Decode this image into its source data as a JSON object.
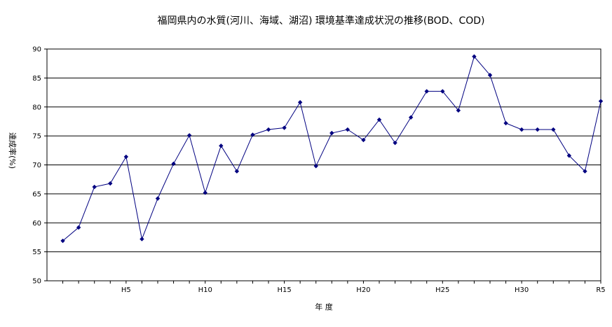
{
  "chart_data": {
    "type": "line",
    "title": "福岡県内の水質(河川、海域、湖沼) 環境基準達成状況の推移(BOD、COD)",
    "xlabel": "年 度",
    "ylabel": "達成率(%)",
    "ylim": [
      50,
      90
    ],
    "yticks": [
      "50",
      "55",
      "60",
      "65",
      "70",
      "75",
      "80",
      "85",
      "90"
    ],
    "xtick_labels": [
      "H5",
      "H10",
      "H15",
      "H20",
      "H25",
      "H30",
      "R5"
    ],
    "xtick_index": [
      4,
      9,
      14,
      19,
      24,
      29,
      34
    ],
    "grid": true,
    "legend": "none",
    "color": "#000080",
    "series": [
      {
        "values": [
          56.9,
          59.2,
          66.2,
          66.8,
          71.4,
          57.2,
          64.2,
          70.2,
          75.1,
          65.2,
          73.3,
          68.9,
          75.2,
          76.1,
          76.4,
          80.8,
          69.8,
          75.5,
          76.1,
          74.3,
          77.8,
          73.8,
          78.2,
          82.7,
          82.7,
          79.4,
          88.7,
          85.5,
          77.2,
          76.1,
          76.1,
          76.1,
          71.6,
          68.9,
          81.0
        ]
      }
    ]
  }
}
